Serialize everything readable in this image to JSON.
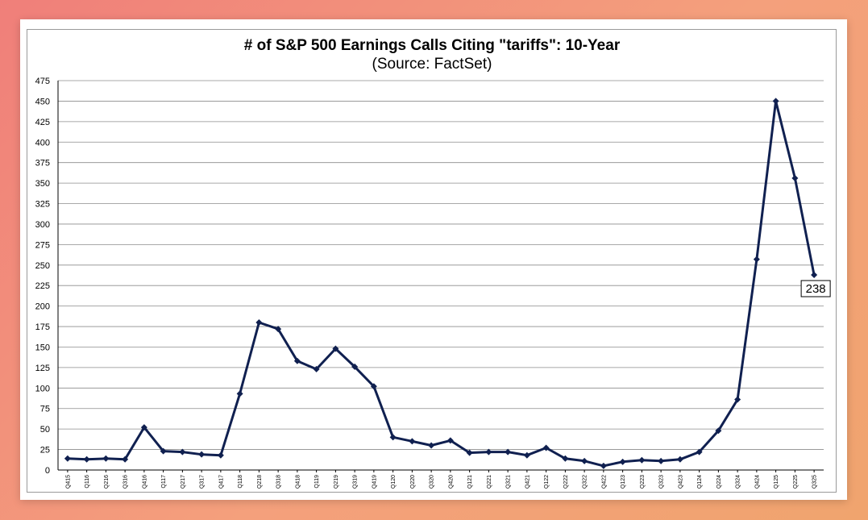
{
  "chart_data": {
    "type": "line",
    "title": "# of S&P 500 Earnings Calls Citing \"tariffs\": 10-Year",
    "subtitle": "(Source: FactSet)",
    "xlabel": "",
    "ylabel": "",
    "ylim": [
      0,
      475
    ],
    "ytick_step": 25,
    "grid": true,
    "line_color": "#102050",
    "categories": [
      "Q415",
      "Q116",
      "Q216",
      "Q316",
      "Q416",
      "Q117",
      "Q217",
      "Q317",
      "Q417",
      "Q118",
      "Q218",
      "Q318",
      "Q418",
      "Q119",
      "Q219",
      "Q319",
      "Q419",
      "Q120",
      "Q220",
      "Q320",
      "Q420",
      "Q121",
      "Q221",
      "Q321",
      "Q421",
      "Q122",
      "Q222",
      "Q322",
      "Q422",
      "Q123",
      "Q223",
      "Q323",
      "Q423",
      "Q124",
      "Q224",
      "Q324",
      "Q424",
      "Q125",
      "Q225",
      "Q325"
    ],
    "series": [
      {
        "name": "Earnings calls citing tariffs",
        "values": [
          14,
          13,
          14,
          13,
          52,
          23,
          22,
          19,
          18,
          93,
          180,
          172,
          133,
          123,
          148,
          126,
          102,
          40,
          35,
          30,
          36,
          21,
          22,
          22,
          18,
          27,
          14,
          11,
          5,
          10,
          12,
          11,
          13,
          22,
          48,
          86,
          257,
          450,
          356,
          238
        ]
      }
    ],
    "annotations": [
      {
        "category": "Q325",
        "text": "238"
      }
    ]
  }
}
